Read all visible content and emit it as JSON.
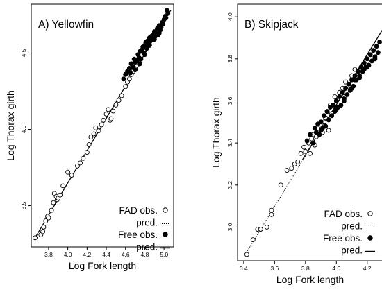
{
  "chart_data": [
    {
      "type": "scatter",
      "title": "A) Yellowfin",
      "xlabel": "Log Fork length",
      "ylabel": "Log Thorax girth",
      "xlim": [
        3.62,
        5.1
      ],
      "ylim": [
        3.23,
        4.82
      ],
      "xticks": [
        "3.8",
        "4.0",
        "4.2",
        "4.4",
        "4.6",
        "4.8",
        "5.0"
      ],
      "yticks": [
        "3.5",
        "4.0",
        "4.5"
      ],
      "legend": {
        "position": "bottom-right",
        "entries": [
          {
            "label": "FAD obs.",
            "symbol": "open-circle"
          },
          {
            "label": "pred.",
            "symbol": "dotted-line"
          },
          {
            "label": "Free obs.",
            "symbol": "filled-circle"
          },
          {
            "label": "pred.",
            "symbol": "solid-line"
          }
        ]
      },
      "series": [
        {
          "label": "FAD obs.",
          "marker": "open-circle",
          "x": [
            3.66,
            3.72,
            3.74,
            3.75,
            3.77,
            3.79,
            3.8,
            3.83,
            3.85,
            3.86,
            3.88,
            3.89,
            3.9,
            3.92,
            3.95,
            4.0,
            4.04,
            4.1,
            4.13,
            4.16,
            4.2,
            4.22,
            4.24,
            4.27,
            4.29,
            4.32,
            4.35,
            4.37,
            4.4,
            4.42,
            4.44,
            4.47,
            4.5,
            4.53,
            4.56,
            4.6,
            4.62,
            4.64,
            4.66,
            4.68,
            4.7,
            4.72,
            4.74,
            4.45
          ],
          "y": [
            3.29,
            3.31,
            3.33,
            3.36,
            3.4,
            3.43,
            3.42,
            3.47,
            3.52,
            3.58,
            3.56,
            3.54,
            3.55,
            3.57,
            3.63,
            3.72,
            3.7,
            3.76,
            3.78,
            3.81,
            3.85,
            3.9,
            3.95,
            3.97,
            4.01,
            3.99,
            4.03,
            4.06,
            4.1,
            4.13,
            4.06,
            4.12,
            4.16,
            4.19,
            4.22,
            4.28,
            4.31,
            4.33,
            4.36,
            4.38,
            4.4,
            4.42,
            4.43,
            4.07
          ]
        },
        {
          "label": "Free obs.",
          "marker": "filled-circle",
          "x": [
            4.58,
            4.6,
            4.62,
            4.64,
            4.65,
            4.66,
            4.68,
            4.69,
            4.7,
            4.72,
            4.73,
            4.74,
            4.75,
            4.76,
            4.77,
            4.78,
            4.79,
            4.8,
            4.81,
            4.82,
            4.83,
            4.84,
            4.85,
            4.86,
            4.87,
            4.88,
            4.89,
            4.9,
            4.91,
            4.92,
            4.93,
            4.94,
            4.95,
            4.96,
            4.97,
            4.98,
            4.99,
            5.0,
            5.01,
            5.02,
            5.03,
            5.04,
            4.7,
            4.75,
            4.8,
            4.85,
            4.9,
            4.95
          ],
          "y": [
            4.33,
            4.36,
            4.38,
            4.4,
            4.37,
            4.43,
            4.41,
            4.46,
            4.44,
            4.45,
            4.49,
            4.47,
            4.51,
            4.46,
            4.52,
            4.54,
            4.5,
            4.55,
            4.57,
            4.53,
            4.58,
            4.56,
            4.6,
            4.58,
            4.61,
            4.59,
            4.62,
            4.64,
            4.61,
            4.63,
            4.66,
            4.62,
            4.68,
            4.65,
            4.67,
            4.7,
            4.69,
            4.72,
            4.74,
            4.73,
            4.78,
            4.76,
            4.39,
            4.43,
            4.49,
            4.55,
            4.59,
            4.63
          ]
        },
        {
          "label": "pred.",
          "style": "dotted",
          "x": [
            3.66,
            5.07
          ],
          "y": [
            3.29,
            4.78
          ]
        },
        {
          "label": "pred.",
          "style": "solid",
          "x": [
            3.66,
            5.07
          ],
          "y": [
            3.29,
            4.78
          ]
        }
      ]
    },
    {
      "type": "scatter",
      "title": "B) Skipjack",
      "xlabel": "Log Fork length",
      "ylabel": "Log Thorax girth",
      "xlim": [
        3.36,
        4.3
      ],
      "ylim": [
        2.84,
        4.06
      ],
      "xticks": [
        "3.4",
        "3.6",
        "3.8",
        "4.0",
        "4.2"
      ],
      "yticks": [
        "3.0",
        "3.2",
        "3.4",
        "3.6",
        "3.8",
        "4.0"
      ],
      "legend": {
        "position": "bottom-right",
        "entries": [
          {
            "label": "FAD obs.",
            "symbol": "open-circle"
          },
          {
            "label": "pred.",
            "symbol": "dotted-line"
          },
          {
            "label": "Free obs.",
            "symbol": "filled-circle"
          },
          {
            "label": "pred.",
            "symbol": "solid-line"
          }
        ]
      },
      "series": [
        {
          "label": "FAD obs.",
          "marker": "open-circle",
          "x": [
            3.42,
            3.46,
            3.49,
            3.51,
            3.55,
            3.58,
            3.58,
            3.64,
            3.68,
            3.71,
            3.73,
            3.75,
            3.77,
            3.79,
            3.8,
            3.82,
            3.84,
            3.85,
            3.87,
            3.88,
            3.9,
            3.91,
            3.93,
            3.94,
            3.96,
            3.97,
            3.99,
            4.0,
            4.02,
            4.04,
            4.06,
            4.08,
            4.1,
            4.12,
            3.83,
            3.86,
            3.92,
            3.95,
            4.01,
            4.05
          ],
          "y": [
            2.87,
            2.94,
            2.99,
            2.99,
            3.0,
            3.06,
            3.08,
            3.2,
            3.27,
            3.28,
            3.3,
            3.31,
            3.35,
            3.38,
            3.36,
            3.4,
            3.42,
            3.44,
            3.43,
            3.47,
            3.49,
            3.45,
            3.52,
            3.55,
            3.58,
            3.54,
            3.62,
            3.6,
            3.64,
            3.66,
            3.69,
            3.67,
            3.72,
            3.75,
            3.35,
            3.39,
            3.5,
            3.46,
            3.57,
            3.62
          ]
        },
        {
          "label": "Free obs.",
          "marker": "filled-circle",
          "x": [
            3.81,
            3.83,
            3.85,
            3.86,
            3.87,
            3.88,
            3.89,
            3.9,
            3.91,
            3.92,
            3.93,
            3.94,
            3.95,
            3.96,
            3.97,
            3.98,
            3.99,
            4.0,
            4.01,
            4.02,
            4.03,
            4.04,
            4.05,
            4.06,
            4.07,
            4.08,
            4.09,
            4.1,
            4.11,
            4.12,
            4.13,
            4.14,
            4.15,
            4.16,
            4.17,
            4.18,
            4.19,
            4.2,
            4.21,
            4.22,
            4.23,
            4.24,
            4.25,
            4.26,
            4.27,
            4.28,
            3.9,
            3.95,
            4.0,
            4.05,
            4.1,
            4.15,
            4.2,
            4.25,
            4.12,
            4.18
          ],
          "y": [
            3.41,
            3.44,
            3.4,
            3.47,
            3.45,
            3.49,
            3.44,
            3.5,
            3.47,
            3.53,
            3.48,
            3.55,
            3.51,
            3.57,
            3.53,
            3.58,
            3.55,
            3.6,
            3.57,
            3.62,
            3.58,
            3.64,
            3.6,
            3.66,
            3.63,
            3.68,
            3.65,
            3.7,
            3.67,
            3.72,
            3.7,
            3.74,
            3.72,
            3.76,
            3.74,
            3.78,
            3.76,
            3.8,
            3.77,
            3.82,
            3.79,
            3.84,
            3.81,
            3.86,
            3.83,
            3.88,
            3.46,
            3.51,
            3.56,
            3.61,
            3.66,
            3.71,
            3.76,
            3.8,
            3.7,
            3.75
          ]
        },
        {
          "label": "pred.",
          "style": "dotted",
          "x": [
            3.41,
            4.3
          ],
          "y": [
            2.87,
            3.94
          ]
        },
        {
          "label": "pred.",
          "style": "solid",
          "x": [
            3.78,
            4.3
          ],
          "y": [
            3.32,
            3.94
          ]
        }
      ]
    }
  ]
}
